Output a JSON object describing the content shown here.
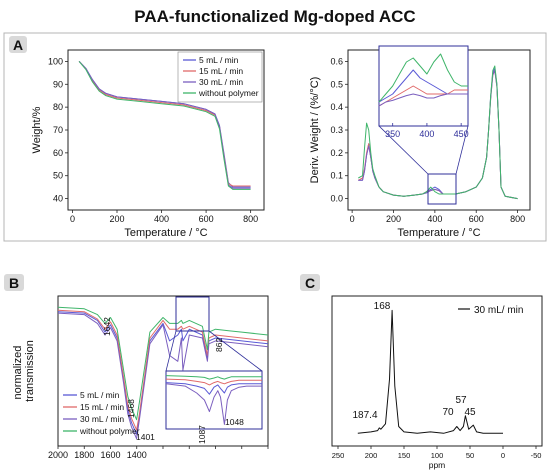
{
  "title": "PAA-functionalized Mg-doped ACC",
  "colors": {
    "blue": "#5a5ad6",
    "red": "#e06a6a",
    "green": "#3fb56a",
    "purple": "#7b5fbf",
    "panel_border": "#b4b4b4",
    "badge_bg": "#d9d9d9",
    "zoom_box": "#2f2f9a"
  },
  "legend_labels": [
    "5 mL / min",
    "15 mL / min",
    "30 mL / min",
    "without polymer"
  ],
  "chart_data": [
    {
      "panel": "A",
      "type": "line",
      "xlabel": "Temperature / °C",
      "ylabel": "Weight/%",
      "xlim": [
        -20,
        860
      ],
      "ylim": [
        35,
        105
      ],
      "xticks": [
        0,
        200,
        400,
        600,
        800
      ],
      "yticks": [
        40,
        50,
        60,
        70,
        80,
        90,
        100
      ],
      "x": [
        30,
        60,
        90,
        120,
        150,
        200,
        300,
        400,
        500,
        600,
        640,
        660,
        680,
        700,
        720,
        800
      ],
      "series": [
        {
          "name": "5 mL / min",
          "color": "blue",
          "values": [
            100,
            97,
            92,
            88,
            86,
            84.5,
            83.5,
            82.5,
            81.5,
            79,
            77,
            72,
            60,
            47,
            45,
            45
          ]
        },
        {
          "name": "15 mL / min",
          "color": "red",
          "values": [
            100,
            97,
            91.5,
            87.5,
            85.5,
            84,
            83,
            82,
            81,
            78.5,
            76.5,
            71.5,
            59,
            46.5,
            45.5,
            45.5
          ]
        },
        {
          "name": "30 mL / min",
          "color": "purple",
          "values": [
            100,
            97,
            92,
            88,
            86,
            84.5,
            83.5,
            82.5,
            81.5,
            79,
            77,
            71.5,
            58.5,
            46,
            44.5,
            44.5
          ]
        },
        {
          "name": "without polymer",
          "color": "green",
          "values": [
            100,
            96.5,
            91,
            87,
            85,
            83.5,
            82.5,
            81.5,
            80.5,
            78,
            76,
            70.5,
            57.5,
            45.5,
            44,
            44
          ]
        }
      ]
    },
    {
      "panel": "A",
      "type": "line",
      "xlabel": "Temperature / °C",
      "ylabel": "Deriv. Weight / (%/°C)",
      "xlim": [
        -20,
        860
      ],
      "ylim": [
        -0.05,
        0.65
      ],
      "xticks": [
        0,
        200,
        400,
        600,
        800
      ],
      "yticks": [
        0.0,
        0.1,
        0.2,
        0.3,
        0.4,
        0.5,
        0.6
      ],
      "x": [
        30,
        50,
        60,
        70,
        80,
        90,
        100,
        110,
        130,
        150,
        200,
        250,
        300,
        340,
        360,
        380,
        400,
        420,
        440,
        500,
        550,
        600,
        630,
        650,
        660,
        670,
        680,
        690,
        700,
        710,
        720,
        740,
        800
      ],
      "series": [
        {
          "name": "5 mL / min",
          "color": "blue",
          "values": [
            0.08,
            0.08,
            0.12,
            0.19,
            0.24,
            0.18,
            0.12,
            0.09,
            0.05,
            0.03,
            0.015,
            0.01,
            0.015,
            0.02,
            0.03,
            0.04,
            0.05,
            0.04,
            0.02,
            0.02,
            0.03,
            0.05,
            0.09,
            0.18,
            0.3,
            0.45,
            0.55,
            0.57,
            0.5,
            0.3,
            0.05,
            0.01,
            0.0
          ]
        },
        {
          "name": "15 mL / min",
          "color": "red",
          "values": [
            0.08,
            0.09,
            0.13,
            0.2,
            0.24,
            0.18,
            0.12,
            0.09,
            0.05,
            0.03,
            0.015,
            0.01,
            0.015,
            0.02,
            0.03,
            0.035,
            0.04,
            0.035,
            0.02,
            0.02,
            0.03,
            0.05,
            0.09,
            0.18,
            0.3,
            0.44,
            0.54,
            0.56,
            0.49,
            0.3,
            0.05,
            0.01,
            0.0
          ]
        },
        {
          "name": "30 mL / min",
          "color": "purple",
          "values": [
            0.08,
            0.08,
            0.12,
            0.19,
            0.23,
            0.18,
            0.12,
            0.09,
            0.05,
            0.03,
            0.015,
            0.01,
            0.015,
            0.02,
            0.025,
            0.035,
            0.04,
            0.035,
            0.02,
            0.02,
            0.03,
            0.05,
            0.09,
            0.18,
            0.3,
            0.44,
            0.54,
            0.56,
            0.49,
            0.3,
            0.05,
            0.01,
            0.0
          ]
        },
        {
          "name": "without polymer",
          "color": "green",
          "values": [
            0.09,
            0.1,
            0.22,
            0.33,
            0.3,
            0.2,
            0.13,
            0.1,
            0.05,
            0.03,
            0.015,
            0.01,
            0.015,
            0.02,
            0.03,
            0.05,
            0.03,
            0.02,
            0.02,
            0.02,
            0.03,
            0.05,
            0.09,
            0.18,
            0.3,
            0.45,
            0.56,
            0.58,
            0.5,
            0.3,
            0.05,
            0.01,
            0.0
          ]
        }
      ],
      "inset": {
        "zoom_x_range": [
          330,
          460
        ],
        "zoom_y_range": [
          -0.01,
          0.09
        ],
        "xticks": [
          350,
          400,
          450
        ],
        "x": [
          330,
          340,
          350,
          360,
          370,
          380,
          390,
          400,
          410,
          420,
          430,
          440,
          450,
          460
        ],
        "series": [
          {
            "name": "5 mL / min",
            "color": "blue",
            "values": [
              0.02,
              0.025,
              0.03,
              0.04,
              0.05,
              0.06,
              0.05,
              0.045,
              0.04,
              0.035,
              0.03,
              0.03,
              0.03,
              0.03
            ]
          },
          {
            "name": "15 mL / min",
            "color": "red",
            "values": [
              0.015,
              0.02,
              0.025,
              0.03,
              0.035,
              0.04,
              0.035,
              0.03,
              0.03,
              0.03,
              0.03,
              0.035,
              0.035,
              0.035
            ]
          },
          {
            "name": "30 mL / min",
            "color": "purple",
            "values": [
              0.015,
              0.02,
              0.022,
              0.025,
              0.028,
              0.03,
              0.028,
              0.025,
              0.025,
              0.028,
              0.03,
              0.03,
              0.03,
              0.03
            ]
          },
          {
            "name": "without polymer",
            "color": "green",
            "values": [
              0.02,
              0.03,
              0.04,
              0.055,
              0.07,
              0.075,
              0.065,
              0.055,
              0.07,
              0.08,
              0.06,
              0.045,
              0.04,
              0.04
            ]
          }
        ]
      }
    },
    {
      "panel": "B",
      "type": "line",
      "ylabel": "normalized transmission",
      "xlim": [
        2000,
        400
      ],
      "ylim": [
        0,
        1
      ],
      "xticks": [
        2000,
        1800,
        1600,
        1400,
        1200,
        1000,
        800,
        600,
        400
      ],
      "annotations": [
        "1642",
        "1468",
        "1401",
        "862"
      ],
      "x": [
        2000,
        1800,
        1700,
        1642,
        1600,
        1550,
        1500,
        1468,
        1440,
        1401,
        1380,
        1300,
        1200,
        1150,
        1087,
        1060,
        1048,
        1000,
        900,
        862,
        850,
        800,
        700,
        600,
        400
      ],
      "series": [
        {
          "name": "5 mL / min",
          "color": "blue",
          "values": [
            0.92,
            0.91,
            0.86,
            0.78,
            0.83,
            0.74,
            0.45,
            0.25,
            0.16,
            0.08,
            0.2,
            0.72,
            0.84,
            0.72,
            0.76,
            0.8,
            0.72,
            0.8,
            0.76,
            0.6,
            0.72,
            0.74,
            0.73,
            0.72,
            0.7
          ]
        },
        {
          "name": "15 mL / min",
          "color": "red",
          "values": [
            0.93,
            0.92,
            0.87,
            0.8,
            0.85,
            0.76,
            0.47,
            0.28,
            0.19,
            0.11,
            0.22,
            0.74,
            0.86,
            0.8,
            0.8,
            0.82,
            0.8,
            0.82,
            0.78,
            0.62,
            0.74,
            0.76,
            0.75,
            0.74,
            0.72
          ]
        },
        {
          "name": "30 mL / min",
          "color": "purple",
          "values": [
            0.91,
            0.9,
            0.84,
            0.76,
            0.81,
            0.72,
            0.43,
            0.22,
            0.13,
            0.05,
            0.18,
            0.7,
            0.83,
            0.62,
            0.58,
            0.74,
            0.52,
            0.76,
            0.74,
            0.58,
            0.7,
            0.72,
            0.71,
            0.7,
            0.68
          ]
        },
        {
          "name": "without polymer",
          "color": "green",
          "values": [
            0.95,
            0.94,
            0.9,
            0.84,
            0.88,
            0.8,
            0.52,
            0.34,
            0.26,
            0.18,
            0.3,
            0.78,
            0.88,
            0.84,
            0.84,
            0.86,
            0.84,
            0.86,
            0.82,
            0.66,
            0.78,
            0.8,
            0.79,
            0.78,
            0.76
          ]
        }
      ],
      "inset": {
        "labels": [
          "1087",
          "1048"
        ],
        "x": [
          1200,
          1150,
          1120,
          1100,
          1087,
          1075,
          1065,
          1058,
          1048,
          1040,
          1030,
          1010,
          990,
          970,
          950
        ],
        "series": [
          {
            "name": "5 mL / min",
            "color": "blue",
            "values": [
              0.8,
              0.78,
              0.74,
              0.7,
              0.6,
              0.72,
              0.76,
              0.7,
              0.62,
              0.72,
              0.76,
              0.78,
              0.78,
              0.78,
              0.78
            ]
          },
          {
            "name": "15 mL / min",
            "color": "red",
            "values": [
              0.86,
              0.85,
              0.82,
              0.8,
              0.76,
              0.8,
              0.82,
              0.8,
              0.78,
              0.8,
              0.82,
              0.84,
              0.84,
              0.84,
              0.84
            ]
          },
          {
            "name": "30 mL / min",
            "color": "purple",
            "values": [
              0.78,
              0.74,
              0.62,
              0.5,
              0.3,
              0.55,
              0.66,
              0.55,
              0.08,
              0.5,
              0.66,
              0.72,
              0.74,
              0.74,
              0.74
            ]
          },
          {
            "name": "without polymer",
            "color": "green",
            "values": [
              0.92,
              0.91,
              0.9,
              0.89,
              0.86,
              0.88,
              0.9,
              0.88,
              0.86,
              0.88,
              0.9,
              0.9,
              0.9,
              0.9,
              0.9
            ]
          }
        ]
      }
    },
    {
      "panel": "C",
      "type": "line",
      "xlabel": "ppm",
      "xlim": [
        250,
        -50
      ],
      "ylim": [
        0,
        1
      ],
      "xticks": [
        250,
        200,
        150,
        100,
        50,
        0,
        -50
      ],
      "legend": "30 mL/ min",
      "annotations": [
        "168",
        "187.4",
        "70",
        "57",
        "45"
      ],
      "x": [
        220,
        200,
        190,
        187.4,
        185,
        178,
        172,
        168,
        164,
        158,
        150,
        130,
        110,
        90,
        75,
        70,
        65,
        60,
        57,
        52,
        45,
        40,
        30,
        10,
        0
      ],
      "series": [
        {
          "name": "30 mL/ min",
          "color": "#111111",
          "values": [
            0.05,
            0.06,
            0.07,
            0.09,
            0.08,
            0.12,
            0.45,
            0.96,
            0.4,
            0.1,
            0.06,
            0.05,
            0.06,
            0.05,
            0.07,
            0.1,
            0.07,
            0.1,
            0.18,
            0.08,
            0.11,
            0.06,
            0.05,
            0.05,
            0.05
          ]
        }
      ]
    }
  ]
}
